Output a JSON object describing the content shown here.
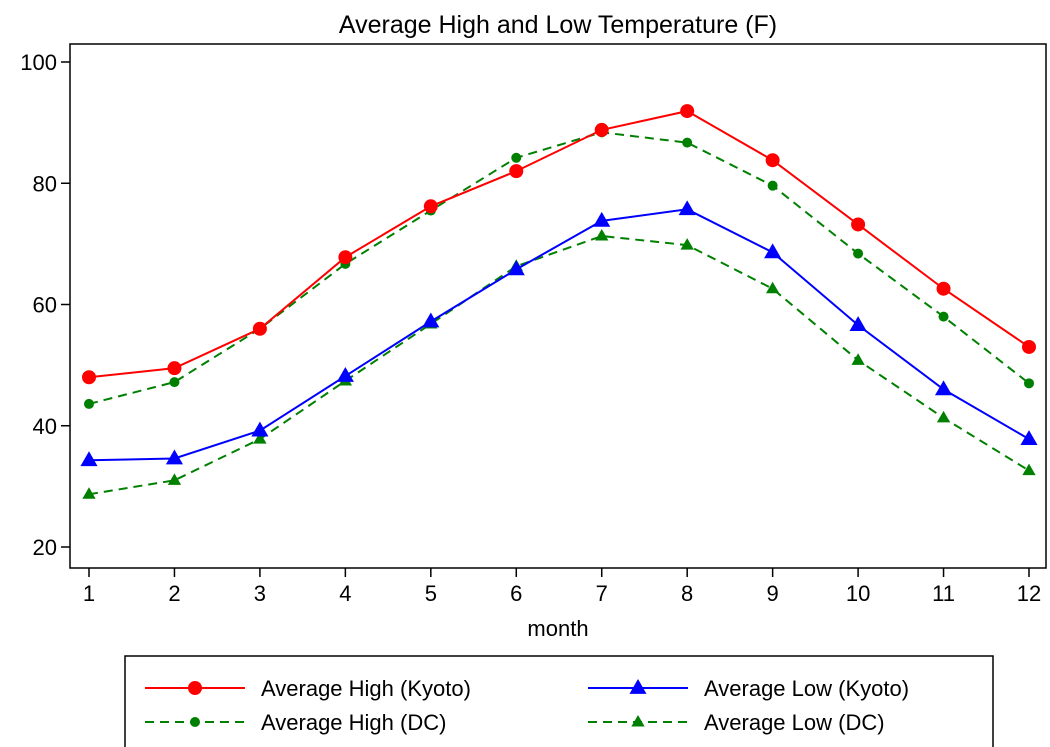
{
  "chart_data": {
    "type": "line",
    "title": "Average High and Low Temperature (F)",
    "xlabel": "month",
    "ylabel": "",
    "x": [
      1,
      2,
      3,
      4,
      5,
      6,
      7,
      8,
      9,
      10,
      11,
      12
    ],
    "xlim": [
      1,
      12
    ],
    "ylim": [
      20,
      100
    ],
    "yticks": [
      20,
      40,
      60,
      80,
      100
    ],
    "grid": false,
    "legend_position": "bottom",
    "series": [
      {
        "name": "Average High (Kyoto)",
        "color": "#ff0000",
        "line": "solid",
        "marker": "circle",
        "values": [
          48.0,
          49.5,
          56.0,
          67.8,
          76.2,
          82.0,
          88.8,
          91.9,
          83.8,
          73.2,
          62.6,
          53.0
        ]
      },
      {
        "name": "Average Low (Kyoto)",
        "color": "#0000ff",
        "line": "solid",
        "marker": "triangle",
        "values": [
          34.3,
          34.6,
          39.2,
          48.2,
          57.2,
          65.8,
          73.8,
          75.7,
          68.6,
          56.6,
          46.0,
          37.8
        ]
      },
      {
        "name": "Average High (DC)",
        "color": "#008000",
        "line": "dashed",
        "marker": "circle-small",
        "values": [
          43.6,
          47.2,
          56.0,
          66.7,
          75.5,
          84.2,
          88.4,
          86.7,
          79.6,
          68.4,
          58.0,
          47.0
        ]
      },
      {
        "name": "Average Low (DC)",
        "color": "#008000",
        "line": "dashed",
        "marker": "triangle-small",
        "values": [
          28.7,
          31.0,
          37.8,
          47.4,
          56.8,
          66.3,
          71.3,
          69.8,
          62.6,
          50.8,
          41.3,
          32.6
        ]
      }
    ],
    "legend_order": [
      0,
      1,
      2,
      3
    ]
  }
}
